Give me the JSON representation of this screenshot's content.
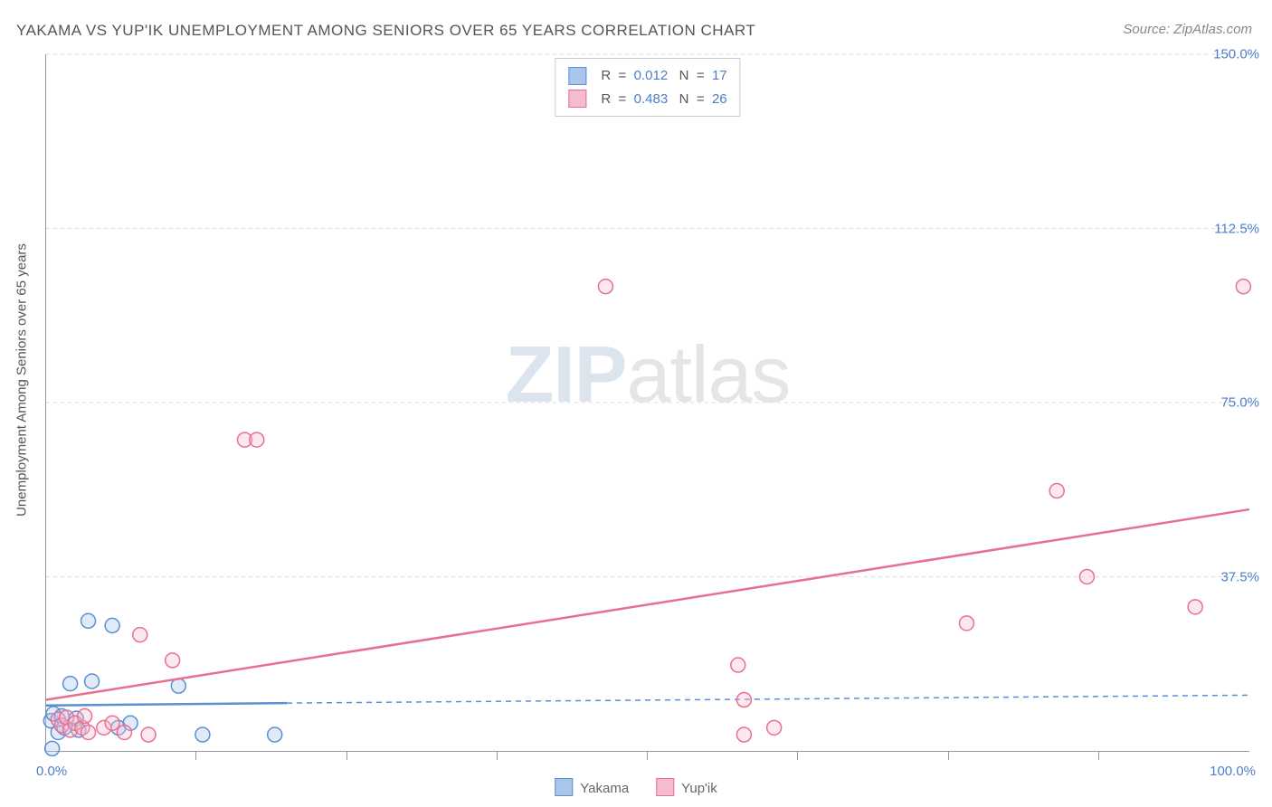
{
  "title": "YAKAMA VS YUP'IK UNEMPLOYMENT AMONG SENIORS OVER 65 YEARS CORRELATION CHART",
  "source_prefix": "Source: ",
  "source": "ZipAtlas.com",
  "watermark_bold": "ZIP",
  "watermark_light": "atlas",
  "y_axis_label": "Unemployment Among Seniors over 65 years",
  "chart": {
    "type": "scatter",
    "xlim": [
      0,
      100
    ],
    "ylim": [
      0,
      150
    ],
    "x_ticks": [
      0,
      100
    ],
    "x_tick_labels": [
      "0.0%",
      "100.0%"
    ],
    "x_minor_ticks": [
      12.5,
      25,
      37.5,
      50,
      62.5,
      75,
      87.5
    ],
    "y_ticks": [
      37.5,
      75.0,
      112.5,
      150.0
    ],
    "y_tick_labels": [
      "37.5%",
      "75.0%",
      "112.5%",
      "150.0%"
    ],
    "background_color": "#ffffff",
    "grid_color": "#dddddd",
    "axis_color": "#999999",
    "tick_label_color": "#4a7ec9",
    "marker_radius": 8,
    "series": [
      {
        "name": "Yakama",
        "label": "Yakama",
        "color_stroke": "#5a8fd6",
        "color_fill": "#a9c6ea",
        "R": "0.012",
        "N": "17",
        "trend": {
          "x1": 0,
          "y1": 9.8,
          "x2": 20,
          "y2": 10.3
        },
        "dash": {
          "x1": 20,
          "y1": 10.3,
          "x2": 100,
          "y2": 12.0
        },
        "points": [
          {
            "x": 0.5,
            "y": 0.5
          },
          {
            "x": 0.4,
            "y": 6.5
          },
          {
            "x": 0.6,
            "y": 8.0
          },
          {
            "x": 1.0,
            "y": 4.0
          },
          {
            "x": 1.3,
            "y": 7.5
          },
          {
            "x": 1.5,
            "y": 5.0
          },
          {
            "x": 2.0,
            "y": 14.5
          },
          {
            "x": 2.5,
            "y": 7.0
          },
          {
            "x": 2.7,
            "y": 4.5
          },
          {
            "x": 3.5,
            "y": 28.0
          },
          {
            "x": 3.8,
            "y": 15.0
          },
          {
            "x": 5.5,
            "y": 27.0
          },
          {
            "x": 6.0,
            "y": 5.0
          },
          {
            "x": 7.0,
            "y": 6.0
          },
          {
            "x": 11.0,
            "y": 14.0
          },
          {
            "x": 13.0,
            "y": 3.5
          },
          {
            "x": 19.0,
            "y": 3.5
          }
        ]
      },
      {
        "name": "Yup'ik",
        "label": "Yup'ik",
        "color_stroke": "#e76f92",
        "color_fill": "#f6bccd",
        "R": "0.483",
        "N": "26",
        "trend": {
          "x1": 0,
          "y1": 11,
          "x2": 100,
          "y2": 52
        },
        "points": [
          {
            "x": 1.0,
            "y": 6.8
          },
          {
            "x": 1.3,
            "y": 5.5
          },
          {
            "x": 1.7,
            "y": 7.2
          },
          {
            "x": 2.0,
            "y": 4.5
          },
          {
            "x": 2.4,
            "y": 6.0
          },
          {
            "x": 3.0,
            "y": 5.0
          },
          {
            "x": 3.2,
            "y": 7.5
          },
          {
            "x": 3.5,
            "y": 4.0
          },
          {
            "x": 4.8,
            "y": 5.0
          },
          {
            "x": 5.5,
            "y": 6.0
          },
          {
            "x": 6.5,
            "y": 4.0
          },
          {
            "x": 7.8,
            "y": 25.0
          },
          {
            "x": 8.5,
            "y": 3.5
          },
          {
            "x": 10.5,
            "y": 19.5
          },
          {
            "x": 16.5,
            "y": 67.0
          },
          {
            "x": 17.5,
            "y": 67.0
          },
          {
            "x": 46.5,
            "y": 100.0
          },
          {
            "x": 57.5,
            "y": 18.5
          },
          {
            "x": 58.0,
            "y": 3.5
          },
          {
            "x": 58.0,
            "y": 11.0
          },
          {
            "x": 60.5,
            "y": 5.0
          },
          {
            "x": 76.5,
            "y": 27.5
          },
          {
            "x": 84.0,
            "y": 56.0
          },
          {
            "x": 86.5,
            "y": 37.5
          },
          {
            "x": 95.5,
            "y": 31.0
          },
          {
            "x": 99.5,
            "y": 100.0
          }
        ]
      }
    ]
  },
  "legend_R_label": "R  =  ",
  "legend_N_label": "   N  =  "
}
